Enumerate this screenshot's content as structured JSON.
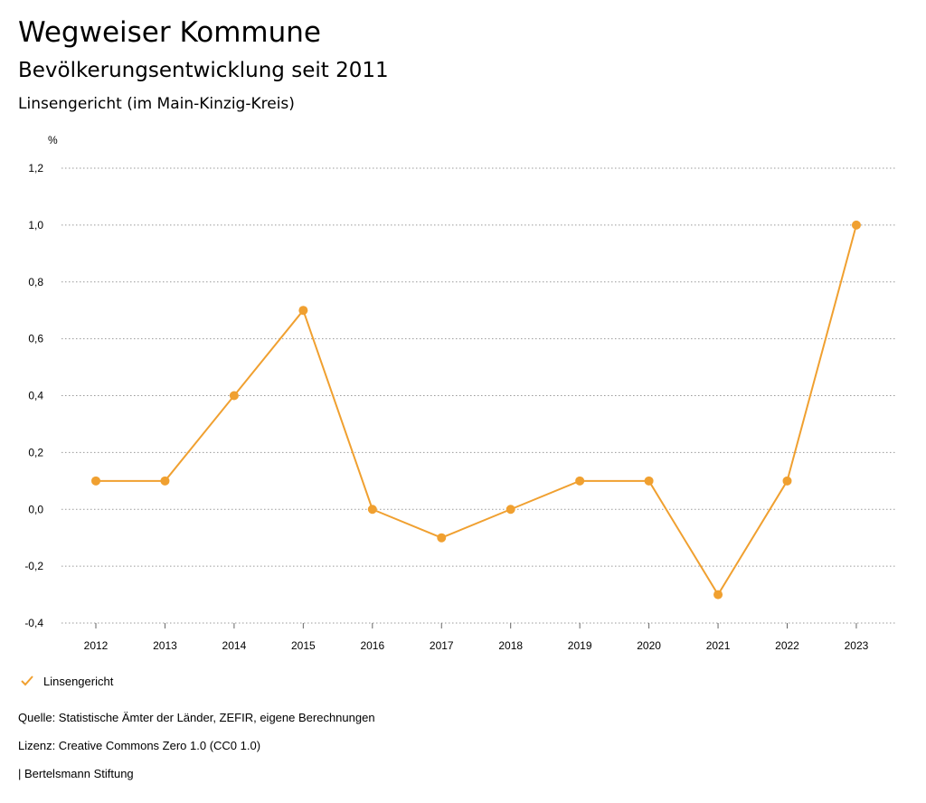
{
  "header": {
    "title": "Wegweiser Kommune",
    "subtitle": "Bevölkerungsentwicklung seit 2011",
    "region": "Linsengericht (im Main-Kinzig-Kreis)"
  },
  "legend": {
    "label": "Linsengericht",
    "color": "#f0a030"
  },
  "footer": {
    "source": "Quelle: Statistische Ämter der Länder, ZEFIR, eigene Berechnungen",
    "license": "Lizenz: Creative Commons Zero 1.0 (CC0 1.0)",
    "brand": "| Bertelsmann Stiftung"
  },
  "chart_data": {
    "type": "line",
    "title": "Bevölkerungsentwicklung seit 2011",
    "ylabel": "%",
    "xlabel": "",
    "categories": [
      "2012",
      "2013",
      "2014",
      "2015",
      "2016",
      "2017",
      "2018",
      "2019",
      "2020",
      "2021",
      "2022",
      "2023"
    ],
    "series": [
      {
        "name": "Linsengericht",
        "color": "#f0a030",
        "values": [
          0.1,
          0.1,
          0.4,
          0.7,
          0.0,
          -0.1,
          0.0,
          0.1,
          0.1,
          -0.3,
          0.1,
          1.0
        ]
      }
    ],
    "ylim": [
      -0.4,
      1.2
    ],
    "yticks": [
      -0.4,
      -0.2,
      0.0,
      0.2,
      0.4,
      0.6,
      0.8,
      1.0,
      1.2
    ],
    "ytick_labels": [
      "-0,4",
      "-0,2",
      "0,0",
      "0,2",
      "0,4",
      "0,6",
      "0,8",
      "1,0",
      "1,2"
    ],
    "grid": true,
    "legend_position": "bottom-left"
  }
}
